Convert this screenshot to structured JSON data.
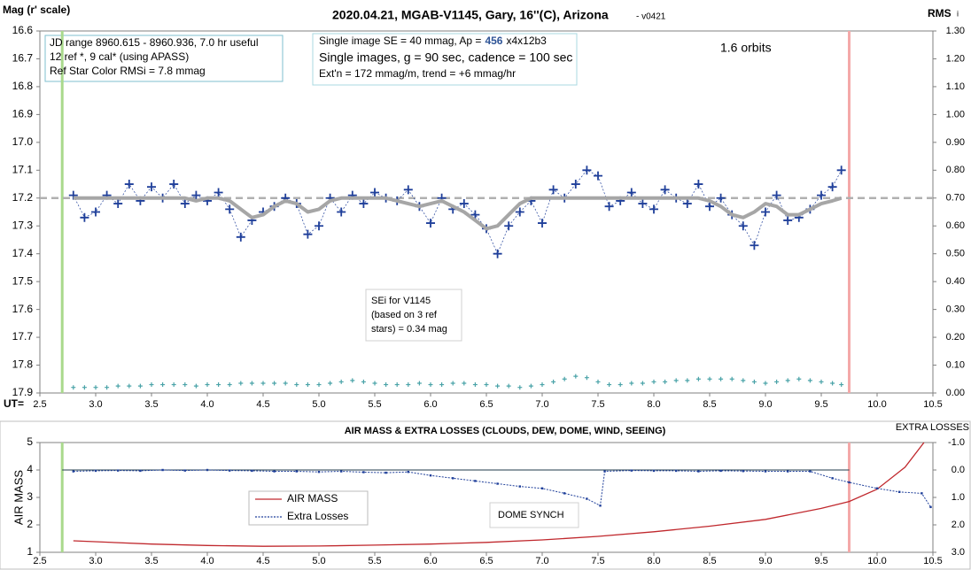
{
  "chart_data": [
    {
      "type": "scatter",
      "title": "2020.04.21, MGAB-V1145, Gary, 16''(C), Arizona",
      "title_note": "- v0421",
      "y_label": "Mag (r' scale)",
      "y2_label": "RMS",
      "y2_label_sub": "i",
      "x_label": "UT=",
      "xlim": [
        2.5,
        10.5
      ],
      "xticks": [
        2.5,
        {
          "value": 3,
          "label": "3.0"
        },
        3.5,
        {
          "value": 4,
          "label": "4.0"
        },
        4.5,
        {
          "value": 5,
          "label": "5.0"
        },
        5.5,
        {
          "value": 6,
          "label": "6.0"
        },
        6.5,
        {
          "value": 7,
          "label": "7.0"
        },
        7.5,
        {
          "value": 8,
          "label": "8.0"
        },
        8.5,
        {
          "value": 9,
          "label": "9.0"
        },
        9.5,
        {
          "value": 10,
          "label": "10.0"
        },
        10.5
      ],
      "ylim": [
        16.6,
        17.9
      ],
      "yticks": [
        16.6,
        16.7,
        16.8,
        16.9,
        {
          "value": 17,
          "label": "17.0"
        },
        17.1,
        17.2,
        17.3,
        17.4,
        17.5,
        17.6,
        17.7,
        17.8,
        17.9
      ],
      "y2lim": [
        1.3,
        0
      ],
      "y2ticks": [
        {
          "value": 1.3,
          "label": "1.30"
        },
        {
          "value": 1.2,
          "label": "1.20"
        },
        {
          "value": 1.1,
          "label": "1.10"
        },
        {
          "value": 1,
          "label": "1.00"
        },
        {
          "value": 0.9,
          "label": "0.90"
        },
        {
          "value": 0.8,
          "label": "0.80"
        },
        {
          "value": 0.7,
          "label": "0.70"
        },
        {
          "value": 0.6,
          "label": "0.60"
        },
        {
          "value": 0.5,
          "label": "0.50"
        },
        {
          "value": 0.4,
          "label": "0.40"
        },
        {
          "value": 0.3,
          "label": "0.30"
        },
        {
          "value": 0.2,
          "label": "0.20"
        },
        {
          "value": 0.1,
          "label": "0.10"
        },
        {
          "value": 0,
          "label": "0.00"
        }
      ],
      "reference_line": 17.2,
      "markers": [
        {
          "x": 2.7,
          "color": "#a9d98c"
        },
        {
          "x": 9.75,
          "color": "#f4a9a9"
        }
      ],
      "x": [
        2.8,
        2.9,
        3.0,
        3.1,
        3.2,
        3.3,
        3.4,
        3.5,
        3.6,
        3.7,
        3.8,
        3.9,
        4.0,
        4.1,
        4.2,
        4.3,
        4.4,
        4.5,
        4.6,
        4.7,
        4.8,
        4.9,
        5.0,
        5.1,
        5.2,
        5.3,
        5.4,
        5.5,
        5.6,
        5.7,
        5.8,
        5.9,
        6.0,
        6.1,
        6.2,
        6.3,
        6.4,
        6.5,
        6.6,
        6.7,
        6.8,
        6.9,
        7.0,
        7.1,
        7.2,
        7.3,
        7.4,
        7.5,
        7.6,
        7.7,
        7.8,
        7.9,
        8.0,
        8.1,
        8.2,
        8.3,
        8.4,
        8.5,
        8.6,
        8.7,
        8.8,
        8.9,
        9.0,
        9.1,
        9.2,
        9.3,
        9.4,
        9.5,
        9.6,
        9.68
      ],
      "series": [
        {
          "style": "cross",
          "color": "#1f3f9a",
          "values": [
            17.19,
            17.27,
            17.25,
            17.19,
            17.22,
            17.15,
            17.21,
            17.16,
            17.2,
            17.15,
            17.22,
            17.19,
            17.21,
            17.18,
            17.24,
            17.34,
            17.28,
            17.25,
            17.23,
            17.2,
            17.22,
            17.33,
            17.3,
            17.2,
            17.25,
            17.19,
            17.22,
            17.18,
            17.2,
            17.21,
            17.17,
            17.23,
            17.29,
            17.2,
            17.24,
            17.22,
            17.26,
            17.31,
            17.4,
            17.3,
            17.25,
            17.21,
            17.29,
            17.17,
            17.2,
            17.15,
            17.1,
            17.12,
            17.23,
            17.21,
            17.18,
            17.22,
            17.24,
            17.17,
            17.2,
            17.22,
            17.15,
            17.23,
            17.2,
            17.26,
            17.3,
            17.37,
            17.25,
            17.19,
            17.28,
            17.27,
            17.24,
            17.19,
            17.16,
            17.1
          ]
        },
        {
          "style": "model",
          "color": "#a6a6a6",
          "values": [
            17.2,
            17.2,
            17.2,
            17.2,
            17.2,
            17.2,
            17.2,
            17.2,
            17.2,
            17.2,
            17.2,
            17.21,
            17.2,
            17.2,
            17.21,
            17.24,
            17.27,
            17.26,
            17.23,
            17.21,
            17.22,
            17.25,
            17.24,
            17.21,
            17.2,
            17.2,
            17.2,
            17.2,
            17.2,
            17.21,
            17.22,
            17.23,
            17.22,
            17.21,
            17.23,
            17.25,
            17.28,
            17.31,
            17.3,
            17.26,
            17.22,
            17.2,
            17.2,
            17.2,
            17.2,
            17.2,
            17.2,
            17.2,
            17.2,
            17.2,
            17.2,
            17.2,
            17.2,
            17.2,
            17.2,
            17.2,
            17.2,
            17.21,
            17.23,
            17.26,
            17.27,
            17.25,
            17.22,
            17.23,
            17.26,
            17.26,
            17.24,
            17.22,
            17.21,
            17.2
          ]
        },
        {
          "style": "small-cross",
          "axis": "y2",
          "color": "#4aa3a8",
          "values": [
            0.02,
            0.02,
            0.02,
            0.02,
            0.025,
            0.025,
            0.025,
            0.03,
            0.03,
            0.03,
            0.03,
            0.025,
            0.03,
            0.03,
            0.03,
            0.035,
            0.035,
            0.035,
            0.035,
            0.035,
            0.03,
            0.03,
            0.03,
            0.035,
            0.04,
            0.045,
            0.04,
            0.035,
            0.03,
            0.03,
            0.03,
            0.035,
            0.03,
            0.03,
            0.035,
            0.035,
            0.03,
            0.03,
            0.025,
            0.025,
            0.02,
            0.025,
            0.03,
            0.04,
            0.05,
            0.06,
            0.055,
            0.04,
            0.03,
            0.03,
            0.035,
            0.035,
            0.04,
            0.04,
            0.045,
            0.045,
            0.05,
            0.05,
            0.05,
            0.05,
            0.045,
            0.04,
            0.035,
            0.04,
            0.045,
            0.05,
            0.045,
            0.04,
            0.035,
            0.03
          ]
        }
      ],
      "annotations": {
        "info": [
          "JD range 8960.615 - 8960.936, 7.0 hr useful",
          "12 ref *, 9 cal* (using APASS)",
          "Ref Star Color RMSi = 7.8 mmag"
        ],
        "setup_first": [
          "Single image SE = 40 mmag, Ap =",
          "456",
          "x4x12b3"
        ],
        "setup": [
          "Single images, g = 90 sec, cadence = 100 sec",
          "Ext'n = 172 mmag/m, trend = +6 mmag/hr"
        ],
        "sei": [
          "SEi for V1145",
          "(based on 3 ref",
          "stars) = 0.34 mag"
        ],
        "orbits": "1.6 orbits"
      }
    },
    {
      "type": "line",
      "title": "AIR MASS & EXTRA LOSSES (CLOUDS, DEW, DOME, WIND, SEEING)",
      "y_label": "AIR MASS",
      "y2_label": "EXTRA LOSSES",
      "note": "DOME SYNCH",
      "xlim": [
        2.5,
        10.5
      ],
      "xticks": [
        2.5,
        {
          "value": 3,
          "label": "3.0"
        },
        3.5,
        {
          "value": 4,
          "label": "4.0"
        },
        4.5,
        {
          "value": 5,
          "label": "5.0"
        },
        5.5,
        {
          "value": 6,
          "label": "6.0"
        },
        6.5,
        {
          "value": 7,
          "label": "7.0"
        },
        7.5,
        {
          "value": 8,
          "label": "8.0"
        },
        8.5,
        {
          "value": 9,
          "label": "9.0"
        },
        9.5,
        {
          "value": 10,
          "label": "10.0"
        },
        10.5
      ],
      "ylim": [
        5,
        1
      ],
      "yticks": [
        5,
        4,
        3,
        2,
        1
      ],
      "y2lim": [
        -1,
        3
      ],
      "y2ticks": [
        {
          "value": -1,
          "label": "-1.0"
        },
        {
          "value": 0,
          "label": "0.0"
        },
        {
          "value": 1,
          "label": "1.0"
        },
        {
          "value": 2,
          "label": "2.0"
        },
        {
          "value": 3,
          "label": "3.0"
        }
      ],
      "reference_line": 0,
      "reference_span": [
        2.7,
        9.75
      ],
      "markers": [
        {
          "x": 2.7,
          "color": "#a9d98c"
        },
        {
          "x": 9.75,
          "color": "#f4a9a9"
        }
      ],
      "series": [
        {
          "name": "AIR MASS",
          "color": "#c0282d",
          "x": [
            2.8,
            3.5,
            4.0,
            4.5,
            5.0,
            5.5,
            6.0,
            6.5,
            7.0,
            7.5,
            8.0,
            8.5,
            9.0,
            9.5,
            9.75,
            10.0,
            10.25,
            10.42
          ],
          "values": [
            1.42,
            1.3,
            1.25,
            1.22,
            1.23,
            1.26,
            1.3,
            1.36,
            1.45,
            1.58,
            1.75,
            1.95,
            2.2,
            2.6,
            2.85,
            3.3,
            4.1,
            5.0
          ]
        },
        {
          "name": "Extra Losses",
          "axis": "y2",
          "color": "#1f3f9a",
          "x": [
            2.8,
            3.0,
            3.2,
            3.4,
            3.6,
            3.8,
            4.0,
            4.2,
            4.4,
            4.6,
            4.8,
            5.0,
            5.2,
            5.4,
            5.6,
            5.8,
            6.0,
            6.2,
            6.4,
            6.6,
            6.8,
            7.0,
            7.2,
            7.4,
            7.52,
            7.56,
            7.8,
            8.0,
            8.2,
            8.4,
            8.6,
            8.8,
            9.0,
            9.2,
            9.4,
            9.6,
            9.75,
            10.0,
            10.2,
            10.4,
            10.48
          ],
          "values": [
            0.05,
            0.03,
            0.02,
            0.03,
            0.0,
            0.02,
            0.0,
            0.02,
            0.03,
            0.05,
            0.05,
            0.07,
            0.05,
            0.08,
            0.1,
            0.07,
            0.2,
            0.3,
            0.4,
            0.5,
            0.6,
            0.67,
            0.85,
            1.05,
            1.3,
            0.05,
            0.02,
            0.03,
            0.03,
            0.05,
            0.03,
            0.04,
            0.05,
            0.05,
            0.05,
            0.3,
            0.45,
            0.67,
            0.8,
            0.85,
            1.35
          ]
        }
      ]
    }
  ]
}
